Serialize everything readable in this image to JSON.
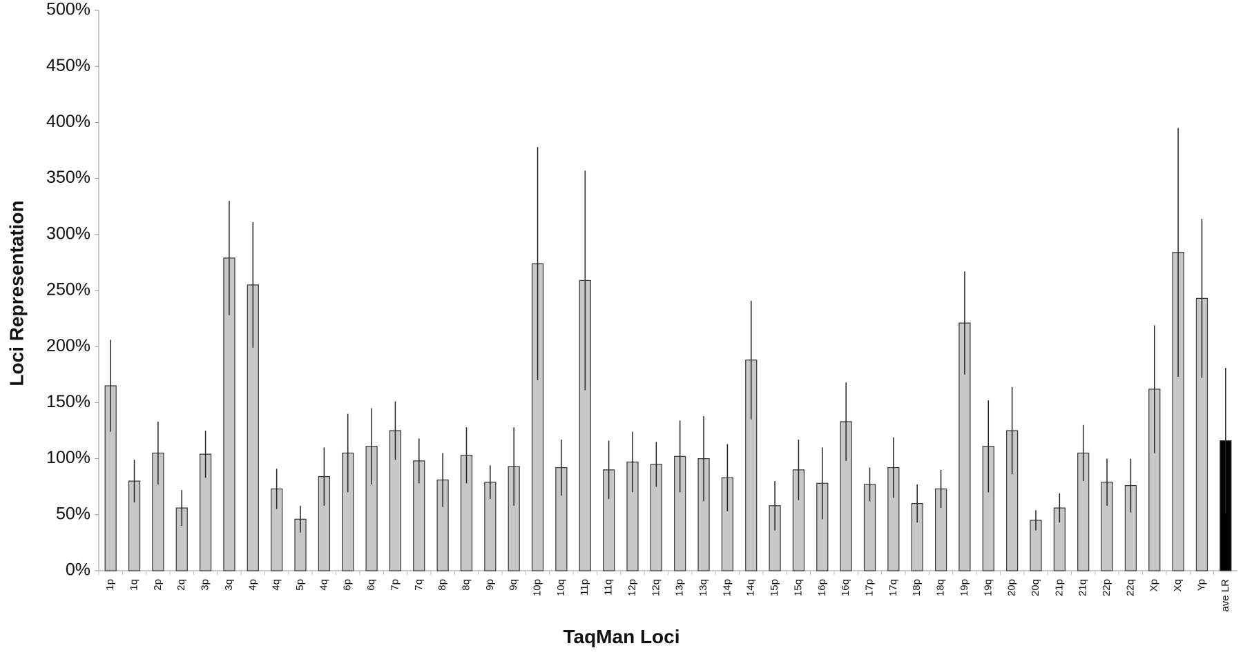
{
  "chart_data": {
    "type": "bar",
    "xlabel": "TaqMan Loci",
    "ylabel": "Loci Representation",
    "categories": [
      "1p",
      "1q",
      "2p",
      "2q",
      "3p",
      "3q",
      "4p",
      "4q",
      "5p",
      "4q",
      "6p",
      "6q",
      "7p",
      "7q",
      "8p",
      "8q",
      "9p",
      "9q",
      "10p",
      "10q",
      "11p",
      "11q",
      "12p",
      "12q",
      "13p",
      "13q",
      "14p",
      "14q",
      "15p",
      "15q",
      "16p",
      "16q",
      "17p",
      "17q",
      "18p",
      "18q",
      "19p",
      "19q",
      "20p",
      "20q",
      "21p",
      "21q",
      "22p",
      "22q",
      "Xp",
      "Xq",
      "Yp",
      "ave LR"
    ],
    "values": [
      165,
      80,
      105,
      56,
      104,
      279,
      255,
      73,
      46,
      84,
      105,
      111,
      125,
      98,
      81,
      103,
      79,
      93,
      274,
      92,
      259,
      90,
      97,
      95,
      102,
      100,
      83,
      188,
      58,
      90,
      78,
      133,
      77,
      92,
      60,
      73,
      221,
      111,
      125,
      45,
      56,
      105,
      79,
      76,
      162,
      284,
      243,
      116
    ],
    "errors": [
      41,
      19,
      28,
      16,
      21,
      51,
      56,
      18,
      12,
      26,
      35,
      34,
      26,
      20,
      24,
      25,
      15,
      35,
      104,
      25,
      98,
      26,
      27,
      20,
      32,
      38,
      30,
      53,
      22,
      27,
      32,
      35,
      15,
      27,
      17,
      17,
      46,
      41,
      39,
      9,
      13,
      25,
      21,
      24,
      57,
      111,
      71,
      65
    ],
    "colors": [
      "#c8c8c8",
      "#c8c8c8",
      "#c8c8c8",
      "#c8c8c8",
      "#c8c8c8",
      "#c8c8c8",
      "#c8c8c8",
      "#c8c8c8",
      "#c8c8c8",
      "#c8c8c8",
      "#c8c8c8",
      "#c8c8c8",
      "#c8c8c8",
      "#c8c8c8",
      "#c8c8c8",
      "#c8c8c8",
      "#c8c8c8",
      "#c8c8c8",
      "#c8c8c8",
      "#c8c8c8",
      "#c8c8c8",
      "#c8c8c8",
      "#c8c8c8",
      "#c8c8c8",
      "#c8c8c8",
      "#c8c8c8",
      "#c8c8c8",
      "#c8c8c8",
      "#c8c8c8",
      "#c8c8c8",
      "#c8c8c8",
      "#c8c8c8",
      "#c8c8c8",
      "#c8c8c8",
      "#c8c8c8",
      "#c8c8c8",
      "#c8c8c8",
      "#c8c8c8",
      "#c8c8c8",
      "#c8c8c8",
      "#c8c8c8",
      "#c8c8c8",
      "#c8c8c8",
      "#c8c8c8",
      "#c8c8c8",
      "#c8c8c8",
      "#c8c8c8",
      "#000000"
    ],
    "ylim": [
      0,
      500
    ],
    "yticks": [
      {
        "value": 0,
        "label": "0%"
      },
      {
        "value": 50,
        "label": "50%"
      },
      {
        "value": 100,
        "label": "100%"
      },
      {
        "value": 150,
        "label": "150%"
      },
      {
        "value": 200,
        "label": "200%"
      },
      {
        "value": 250,
        "label": "250%"
      },
      {
        "value": 300,
        "label": "300%"
      },
      {
        "value": 350,
        "label": "350%"
      },
      {
        "value": 400,
        "label": "400%"
      },
      {
        "value": 450,
        "label": "450%"
      },
      {
        "value": 500,
        "label": "500%"
      }
    ]
  }
}
